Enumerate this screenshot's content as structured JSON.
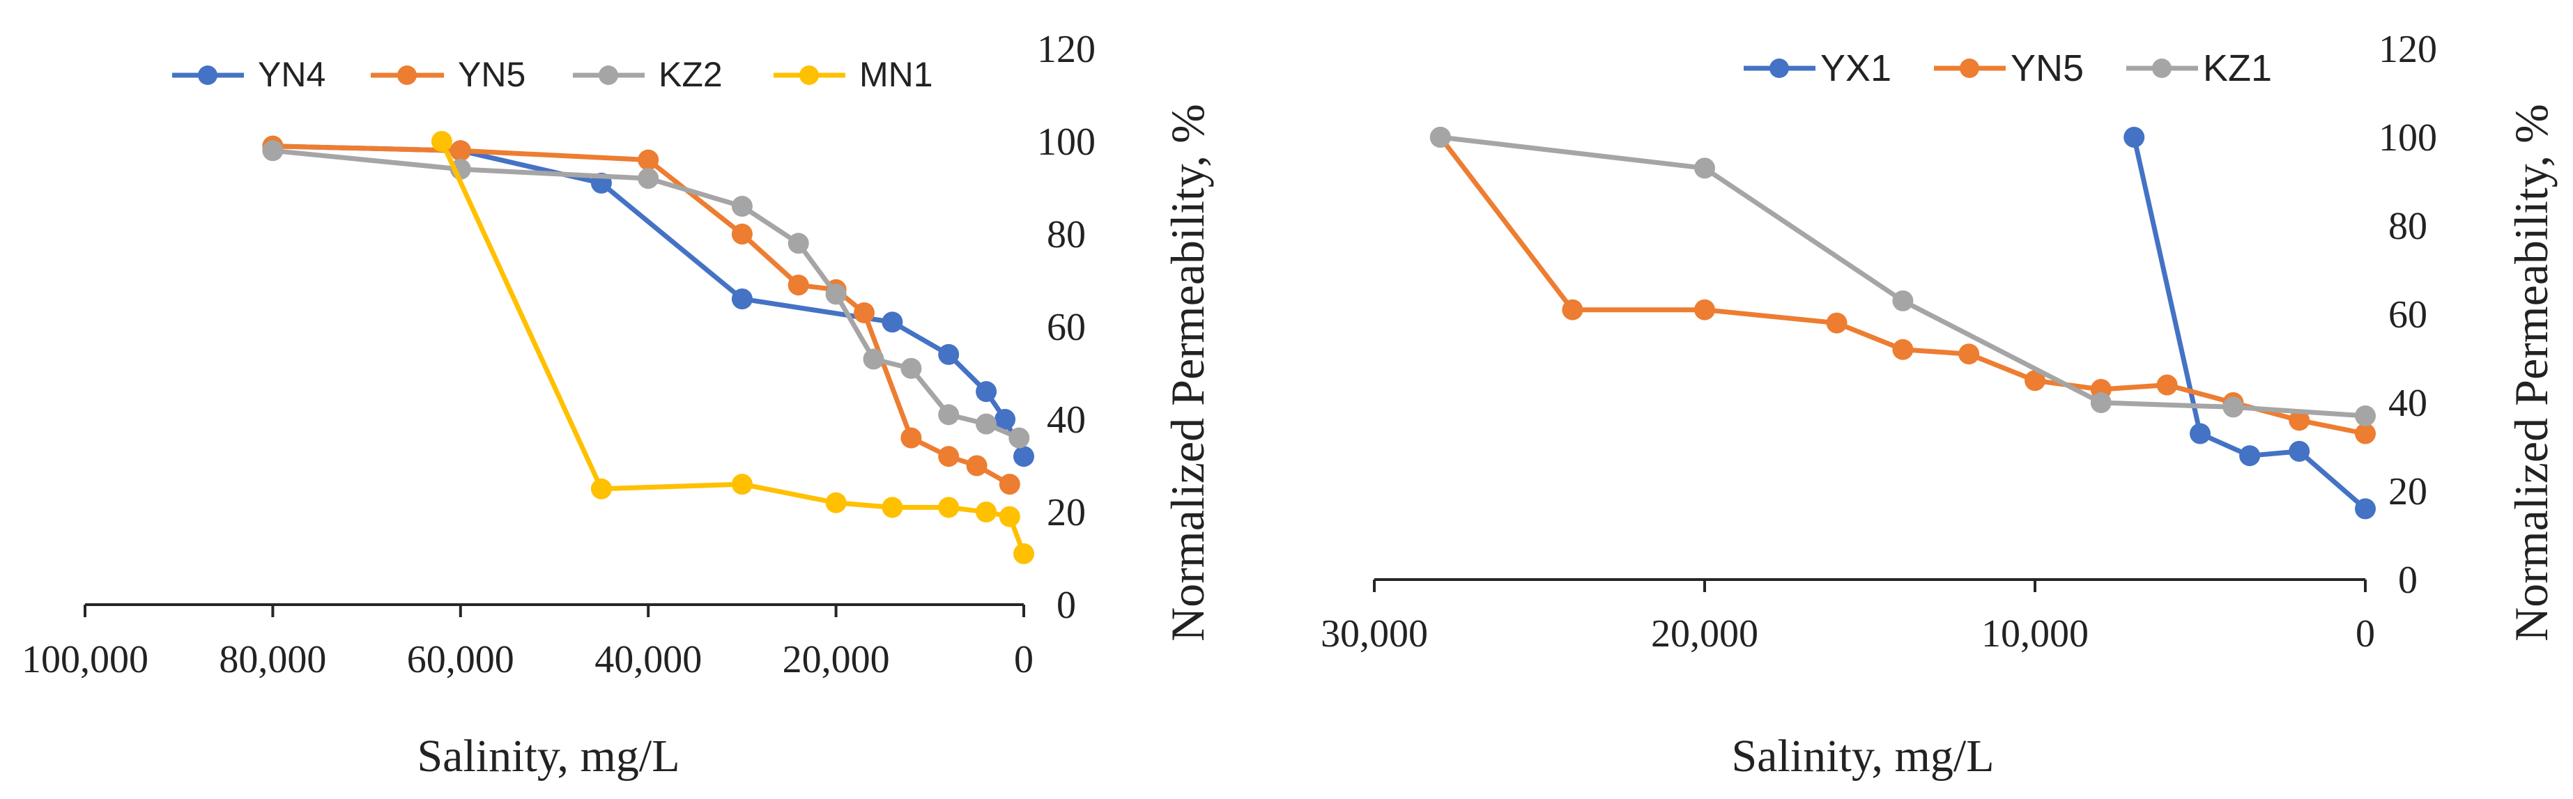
{
  "chart_data": [
    {
      "type": "line",
      "title": "",
      "xlabel": "Salinity, mg/L",
      "ylabel": "Normalized Permeability, %",
      "xlim": [
        100000,
        0
      ],
      "ylim": [
        0,
        120
      ],
      "x_reversed": true,
      "y_axis_side": "right",
      "grid": false,
      "legend_position": "top",
      "xticks": [
        100000,
        80000,
        60000,
        40000,
        20000,
        0
      ],
      "xtick_labels": [
        "100,000",
        "80,000",
        "60,000",
        "40,000",
        "20,000",
        "0"
      ],
      "yticks": [
        0,
        20,
        40,
        60,
        80,
        100,
        120
      ],
      "ytick_labels": [
        "0",
        "20",
        "40",
        "60",
        "80",
        "100",
        "120"
      ],
      "series": [
        {
          "name": "YN4",
          "color": "#4472C4",
          "x": [
            80000,
            60000,
            45000,
            30000,
            14000,
            8000,
            4000,
            2000,
            0
          ],
          "y": [
            99,
            98,
            91,
            66,
            61,
            54,
            46,
            40,
            32
          ]
        },
        {
          "name": "YN5",
          "color": "#ED7D31",
          "x": [
            80000,
            60000,
            40000,
            30000,
            24000,
            20000,
            17000,
            12000,
            8000,
            5000,
            1500
          ],
          "y": [
            99,
            98,
            96,
            80,
            69,
            68,
            63,
            36,
            32,
            30,
            26
          ]
        },
        {
          "name": "KZ2",
          "color": "#A5A5A5",
          "x": [
            80000,
            60000,
            40000,
            30000,
            24000,
            20000,
            16000,
            12000,
            8000,
            4000,
            500
          ],
          "y": [
            98,
            94,
            92,
            86,
            78,
            67,
            53,
            51,
            41,
            39,
            36
          ]
        },
        {
          "name": "MN1",
          "color": "#FFC000",
          "x": [
            62000,
            45000,
            30000,
            20000,
            14000,
            8000,
            4000,
            1500,
            0
          ],
          "y": [
            100,
            25,
            26,
            22,
            21,
            21,
            20,
            19,
            11
          ]
        }
      ]
    },
    {
      "type": "line",
      "title": "",
      "xlabel": "Salinity, mg/L",
      "ylabel": "Normalized Permeability, %",
      "xlim": [
        30000,
        0
      ],
      "ylim": [
        0,
        120
      ],
      "x_reversed": true,
      "y_axis_side": "right",
      "grid": false,
      "legend_position": "top",
      "xticks": [
        30000,
        20000,
        10000,
        0
      ],
      "xtick_labels": [
        "30,000",
        "20,000",
        "10,000",
        "0"
      ],
      "yticks": [
        0,
        20,
        40,
        60,
        80,
        100,
        120
      ],
      "ytick_labels": [
        "0",
        "20",
        "40",
        "60",
        "80",
        "100",
        "120"
      ],
      "series": [
        {
          "name": "YX1",
          "color": "#4472C4",
          "x": [
            7000,
            5000,
            3500,
            2000,
            0
          ],
          "y": [
            100,
            33,
            28,
            29,
            16
          ]
        },
        {
          "name": "YN5",
          "color": "#ED7D31",
          "x": [
            28000,
            24000,
            20000,
            16000,
            14000,
            12000,
            10000,
            8000,
            6000,
            4000,
            2000,
            0
          ],
          "y": [
            100,
            61,
            61,
            58,
            52,
            51,
            45,
            43,
            44,
            40,
            36,
            33
          ]
        },
        {
          "name": "KZ1",
          "color": "#A5A5A5",
          "x": [
            28000,
            20000,
            14000,
            8000,
            4000,
            0
          ],
          "y": [
            100,
            93,
            63,
            40,
            39,
            37
          ]
        }
      ]
    }
  ]
}
